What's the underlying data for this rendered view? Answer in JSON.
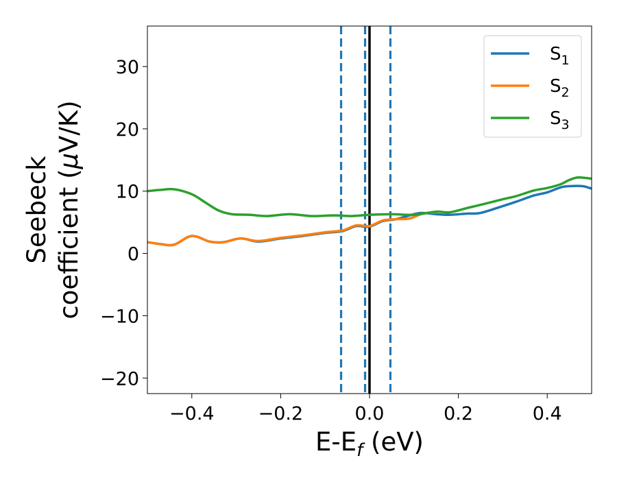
{
  "chart_data": {
    "type": "line",
    "xlabel": {
      "main": "E-E",
      "sub": "f",
      "tail": " (eV)"
    },
    "ylabel": {
      "line1": "Seebeck",
      "line2_text": "coefficient  (",
      "line2_symbol": "μ",
      "line2_tail": "V/K)"
    },
    "xlim": [
      -0.5,
      0.5
    ],
    "ylim": [
      -22.5,
      36.5
    ],
    "x_ticks": [
      -0.4,
      -0.2,
      0.0,
      0.2,
      0.4
    ],
    "x_tick_labels": [
      "−0.4",
      "−0.2",
      "0.0",
      "0.2",
      "0.4"
    ],
    "y_ticks": [
      -20,
      -10,
      0,
      10,
      20,
      30
    ],
    "y_tick_labels": [
      "−20",
      "−10",
      "0",
      "10",
      "20",
      "30"
    ],
    "grid": false,
    "legend_position": "top-right",
    "vlines": [
      {
        "x": 0.0,
        "style": "solid",
        "color": "#000000"
      },
      {
        "x": -0.064,
        "style": "dashed",
        "color": "#1f77b4"
      },
      {
        "x": -0.01,
        "style": "dashed",
        "color": "#1f77b4"
      },
      {
        "x": 0.047,
        "style": "dashed",
        "color": "#1f77b4"
      }
    ],
    "series": [
      {
        "name": "S",
        "sub": "1",
        "color": "#1f77b4",
        "x": [
          -0.5,
          -0.47,
          -0.44,
          -0.4,
          -0.36,
          -0.33,
          -0.29,
          -0.25,
          -0.2,
          -0.15,
          -0.1,
          -0.06,
          -0.03,
          0.0,
          0.03,
          0.06,
          0.1,
          0.12,
          0.15,
          0.18,
          0.22,
          0.25,
          0.3,
          0.33,
          0.37,
          0.4,
          0.43,
          0.45,
          0.48,
          0.5
        ],
        "y": [
          1.8,
          1.5,
          1.4,
          2.8,
          1.9,
          1.8,
          2.4,
          1.9,
          2.4,
          2.8,
          3.3,
          3.6,
          4.4,
          4.3,
          5.2,
          5.5,
          6.3,
          6.5,
          6.3,
          6.2,
          6.4,
          6.5,
          7.6,
          8.3,
          9.3,
          9.8,
          10.6,
          10.8,
          10.8,
          10.4
        ]
      },
      {
        "name": "S",
        "sub": "2",
        "color": "#ff7f0e",
        "x": [
          -0.5,
          -0.47,
          -0.44,
          -0.4,
          -0.36,
          -0.33,
          -0.29,
          -0.25,
          -0.2,
          -0.15,
          -0.1,
          -0.06,
          -0.03,
          0.0,
          0.03,
          0.06,
          0.09,
          0.12,
          0.15
        ],
        "y": [
          1.8,
          1.5,
          1.4,
          2.8,
          1.9,
          1.8,
          2.4,
          2.0,
          2.5,
          2.9,
          3.4,
          3.7,
          4.5,
          4.4,
          5.3,
          5.5,
          5.6,
          6.4,
          6.6
        ]
      },
      {
        "name": "S",
        "sub": "3",
        "color": "#2ca02c",
        "x": [
          -0.5,
          -0.47,
          -0.44,
          -0.4,
          -0.37,
          -0.34,
          -0.31,
          -0.27,
          -0.23,
          -0.18,
          -0.13,
          -0.08,
          -0.04,
          0.0,
          0.05,
          0.1,
          0.15,
          0.18,
          0.22,
          0.25,
          0.3,
          0.33,
          0.37,
          0.4,
          0.43,
          0.45,
          0.47,
          0.5
        ],
        "y": [
          10.0,
          10.2,
          10.3,
          9.5,
          8.2,
          6.9,
          6.3,
          6.2,
          6.0,
          6.3,
          6.0,
          6.1,
          6.0,
          6.2,
          6.3,
          6.2,
          6.7,
          6.6,
          7.3,
          7.8,
          8.7,
          9.2,
          10.1,
          10.5,
          11.1,
          11.8,
          12.2,
          12.0
        ]
      }
    ]
  }
}
